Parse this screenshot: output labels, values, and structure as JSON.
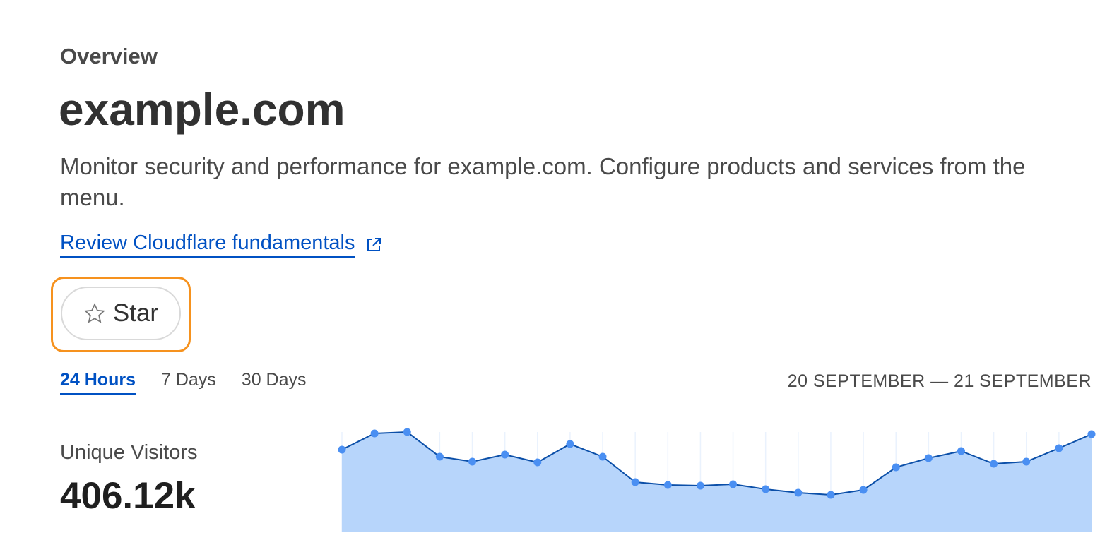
{
  "header": {
    "eyebrow": "Overview",
    "title": "example.com",
    "description": "Monitor security and performance for example.com. Configure products and services from the menu.",
    "link": "Review Cloudflare fundamentals"
  },
  "star_button": {
    "label": "Star"
  },
  "tabs": {
    "items": [
      "24 Hours",
      "7 Days",
      "30 Days"
    ],
    "selected": 0
  },
  "date_range": "20 SEPTEMBER — 21 SEPTEMBER",
  "metric": {
    "label": "Unique Visitors",
    "value": "406.12k"
  },
  "chart_data": {
    "type": "area",
    "values": [
      116,
      139,
      141,
      106,
      99,
      109,
      98,
      124,
      106,
      70,
      66,
      65,
      67,
      60,
      55,
      52,
      59,
      91,
      104,
      114,
      96,
      99,
      118,
      138
    ],
    "ylim": [
      0,
      141
    ],
    "line_color": "#0b4fa8",
    "fill_color": "#b7d5fb",
    "point_color": "#4a8ff2"
  }
}
